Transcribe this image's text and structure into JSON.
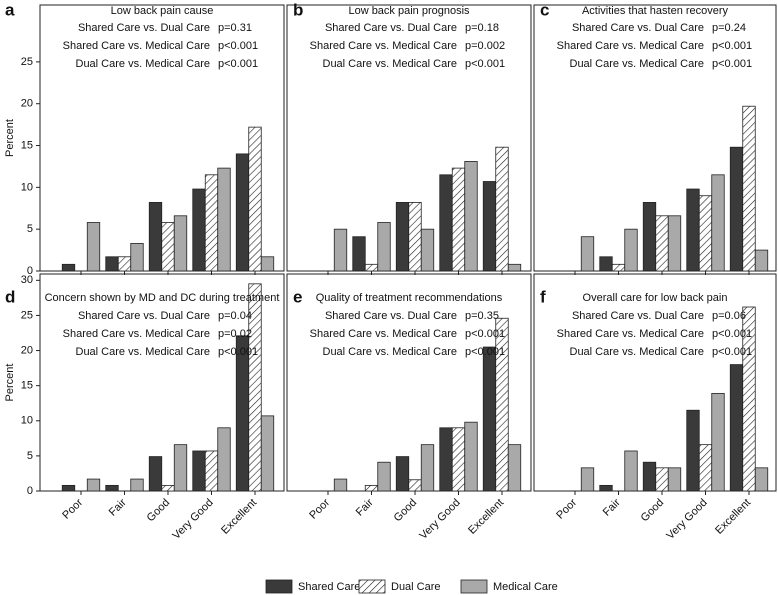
{
  "chart_data": [
    {
      "type": "bar",
      "letter": "a",
      "title": "Low back pain cause",
      "annotations": [
        {
          "text": "Shared Care vs. Dual Care",
          "p": "p=0.31"
        },
        {
          "text": "Shared Care vs. Medical Care",
          "p": "p<0.001"
        },
        {
          "text": "Dual Care vs. Medical Care",
          "p": "p<0.001"
        }
      ],
      "ylabel": "Percent",
      "categories": [
        null,
        null,
        null,
        null,
        null
      ],
      "series": [
        {
          "name": "Shared Care",
          "color": "#3a3a3a",
          "values": [
            0.8,
            1.7,
            8.2,
            9.8,
            14.0
          ]
        },
        {
          "name": "Dual Care",
          "color": "#ffffff",
          "pattern": "hatch",
          "values": [
            0,
            1.7,
            5.8,
            11.5,
            17.2
          ]
        },
        {
          "name": "Medical Care",
          "color": "#a9a9a9",
          "values": [
            5.8,
            3.3,
            6.6,
            12.3,
            1.7
          ]
        }
      ],
      "ylim": [
        0,
        31.8
      ],
      "yticks": [
        0,
        5,
        10,
        15,
        20,
        25
      ]
    },
    {
      "type": "bar",
      "letter": "b",
      "title": "Low back pain prognosis",
      "annotations": [
        {
          "text": "Shared Care vs. Dual Care",
          "p": "p=0.18"
        },
        {
          "text": "Shared Care vs. Medical Care",
          "p": "p=0.002"
        },
        {
          "text": "Dual Care vs. Medical Care",
          "p": "p<0.001"
        }
      ],
      "categories": [
        null,
        null,
        null,
        null,
        null
      ],
      "series": [
        {
          "name": "Shared Care",
          "color": "#3a3a3a",
          "values": [
            0,
            4.1,
            8.2,
            11.5,
            10.7
          ]
        },
        {
          "name": "Dual Care",
          "color": "#ffffff",
          "pattern": "hatch",
          "values": [
            0,
            0.8,
            8.2,
            12.3,
            14.8
          ]
        },
        {
          "name": "Medical Care",
          "color": "#a9a9a9",
          "values": [
            5.0,
            5.8,
            5.0,
            13.1,
            0.8
          ]
        }
      ],
      "ylim": [
        0,
        31.8
      ]
    },
    {
      "type": "bar",
      "letter": "c",
      "title": "Activities that hasten recovery",
      "annotations": [
        {
          "text": "Shared Care vs. Dual Care",
          "p": "p=0.24"
        },
        {
          "text": "Shared Care vs. Medical Care",
          "p": "p<0.001"
        },
        {
          "text": "Dual Care vs. Medical Care",
          "p": "p<0.001"
        }
      ],
      "categories": [
        null,
        null,
        null,
        null,
        null
      ],
      "series": [
        {
          "name": "Shared Care",
          "color": "#3a3a3a",
          "values": [
            0,
            1.7,
            8.2,
            9.8,
            14.8
          ]
        },
        {
          "name": "Dual Care",
          "color": "#ffffff",
          "pattern": "hatch",
          "values": [
            0,
            0.8,
            6.6,
            9.0,
            19.7
          ]
        },
        {
          "name": "Medical Care",
          "color": "#a9a9a9",
          "values": [
            4.1,
            5.0,
            6.6,
            11.5,
            2.5
          ]
        }
      ],
      "ylim": [
        0,
        31.8
      ]
    },
    {
      "type": "bar",
      "letter": "d",
      "title": "Concern shown by MD and DC during treatment",
      "annotations": [
        {
          "text": "Shared Care vs. Dual Care",
          "p": "p=0.04"
        },
        {
          "text": "Shared Care vs. Medical Care",
          "p": "p=0.02"
        },
        {
          "text": "Dual Care vs. Medical Care",
          "p": "p<0.001"
        }
      ],
      "ylabel": "Percent",
      "categories": [
        "Poor",
        "Fair",
        "Good",
        "Very Good",
        "Excellent"
      ],
      "series": [
        {
          "name": "Shared Care",
          "color": "#3a3a3a",
          "values": [
            0.8,
            0.8,
            4.9,
            5.7,
            22.1
          ]
        },
        {
          "name": "Dual Care",
          "color": "#ffffff",
          "pattern": "hatch",
          "values": [
            0,
            0,
            0.8,
            5.7,
            29.5
          ]
        },
        {
          "name": "Medical Care",
          "color": "#a9a9a9",
          "values": [
            1.7,
            1.7,
            6.6,
            9.0,
            10.7
          ]
        }
      ],
      "ylim": [
        0,
        30.9
      ],
      "yticks": [
        0,
        5,
        10,
        15,
        20,
        25,
        30
      ]
    },
    {
      "type": "bar",
      "letter": "e",
      "title": "Quality of treatment recommendations",
      "annotations": [
        {
          "text": "Shared Care vs. Dual Care",
          "p": "p=0.35"
        },
        {
          "text": "Shared Care vs. Medical Care",
          "p": "p<0.001"
        },
        {
          "text": "Dual Care vs. Medical Care",
          "p": "p<0.001"
        }
      ],
      "categories": [
        "Poor",
        "Fair",
        "Good",
        "Very Good",
        "Excellent"
      ],
      "series": [
        {
          "name": "Shared Care",
          "color": "#3a3a3a",
          "values": [
            0,
            0,
            4.9,
            9.0,
            20.5
          ]
        },
        {
          "name": "Dual Care",
          "color": "#ffffff",
          "pattern": "hatch",
          "values": [
            0,
            0.8,
            1.6,
            9.0,
            24.6
          ]
        },
        {
          "name": "Medical Care",
          "color": "#a9a9a9",
          "values": [
            1.7,
            4.1,
            6.6,
            9.8,
            6.6
          ]
        }
      ],
      "ylim": [
        0,
        30.9
      ]
    },
    {
      "type": "bar",
      "letter": "f",
      "title": "Overall care for low back pain",
      "annotations": [
        {
          "text": "Shared Care vs. Dual Care",
          "p": "p=0.06"
        },
        {
          "text": "Shared Care vs. Medical Care",
          "p": "p<0.001"
        },
        {
          "text": "Dual Care vs. Medical Care",
          "p": "p<0.001"
        }
      ],
      "categories": [
        "Poor",
        "Fair",
        "Good",
        "Very Good",
        "Excellent"
      ],
      "series": [
        {
          "name": "Shared Care",
          "color": "#3a3a3a",
          "values": [
            0,
            0.8,
            4.1,
            11.5,
            18.0
          ]
        },
        {
          "name": "Dual Care",
          "color": "#ffffff",
          "pattern": "hatch",
          "values": [
            0,
            0,
            3.3,
            6.6,
            26.2
          ]
        },
        {
          "name": "Medical Care",
          "color": "#a9a9a9",
          "values": [
            3.3,
            5.7,
            3.3,
            13.9,
            3.3
          ]
        }
      ],
      "ylim": [
        0,
        30.9
      ]
    }
  ]
}
